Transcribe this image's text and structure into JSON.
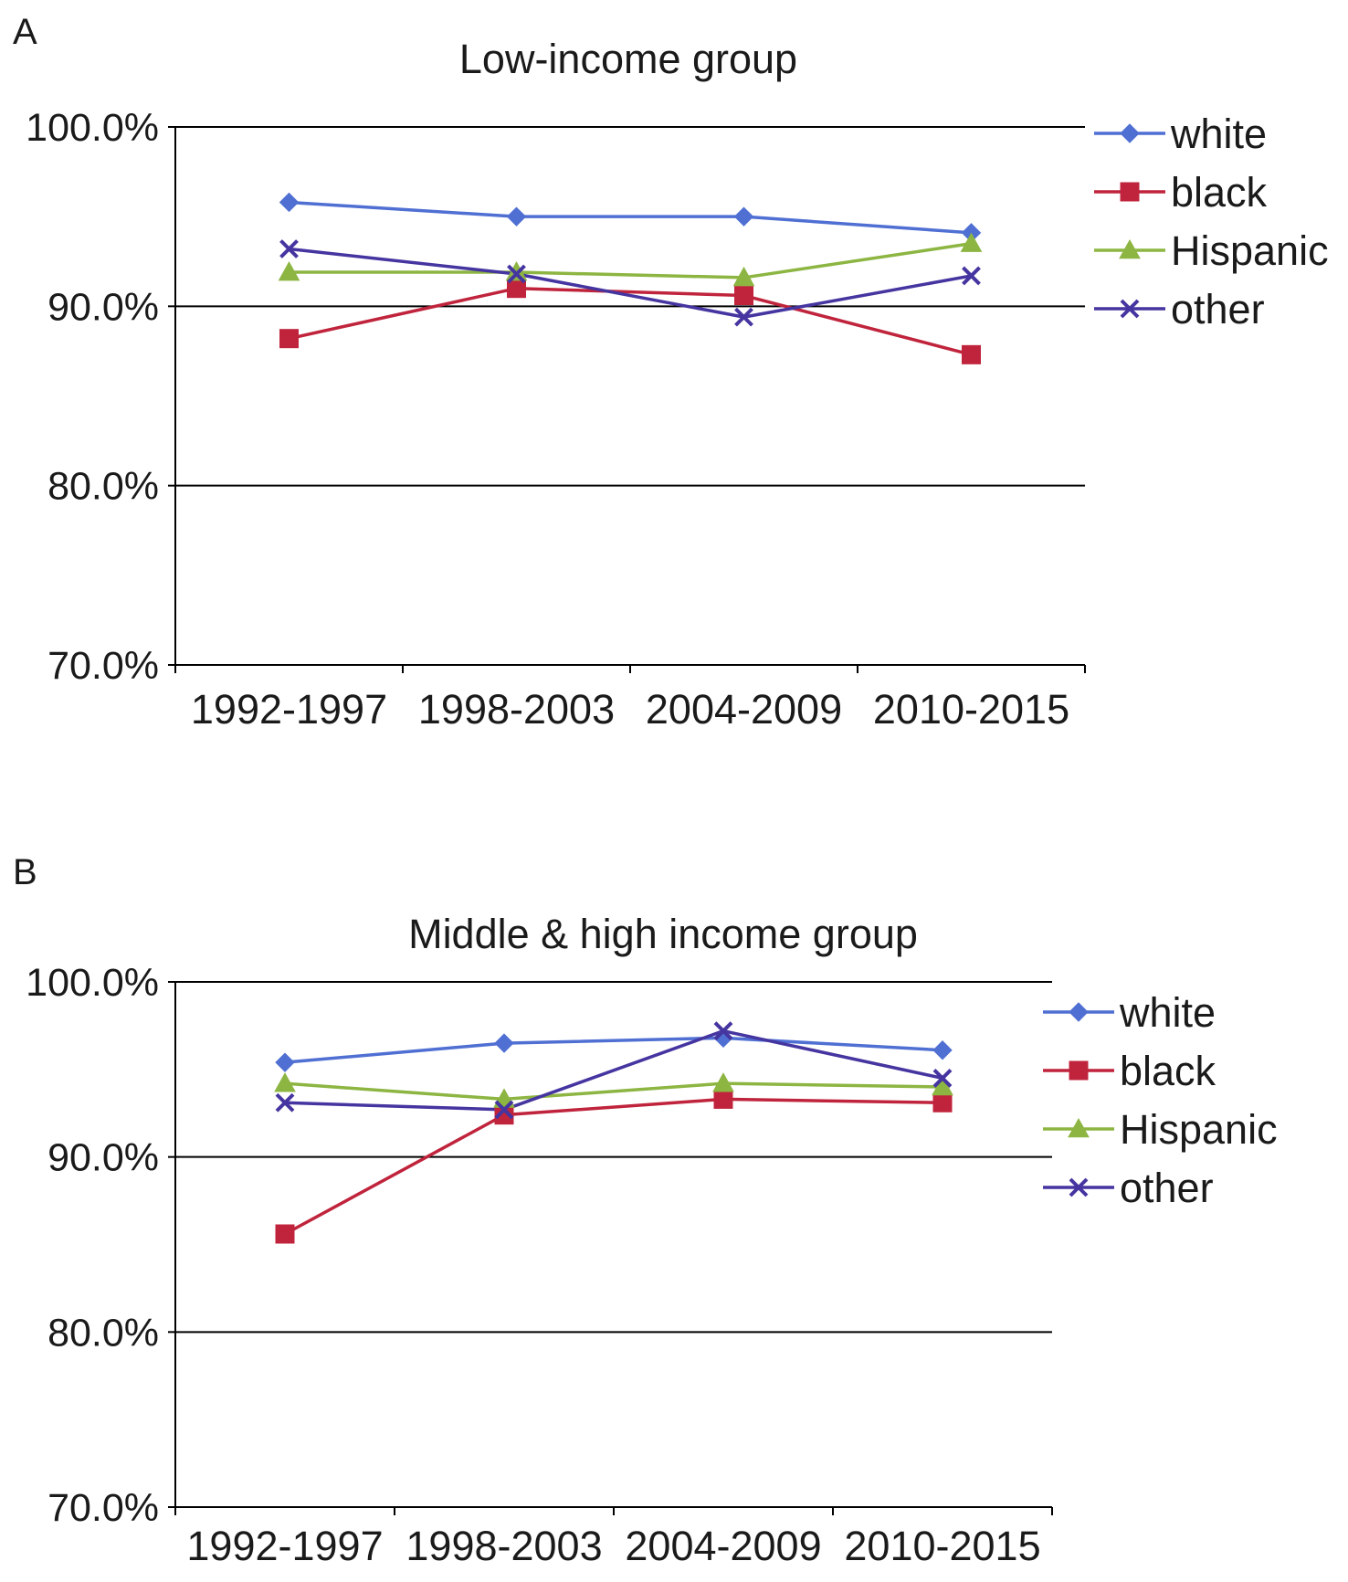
{
  "chart_data": [
    {
      "panel_label": "A",
      "type": "line",
      "title": "Low-income group",
      "xlabel": "",
      "ylabel": "",
      "categories": [
        "1992-1997",
        "1998-2003",
        "2004-2009",
        "2010-2015"
      ],
      "ylim": [
        0.7,
        1.0
      ],
      "yticks": [
        "100.0%",
        "90.0%",
        "80.0%",
        "70.0%"
      ],
      "ytick_values": [
        1.0,
        0.9,
        0.8,
        0.7
      ],
      "grid": true,
      "legend_position": "right",
      "series": [
        {
          "name": "white",
          "marker": "diamond",
          "color": "#4F6FD3",
          "values": [
            0.958,
            0.95,
            0.95,
            0.941
          ]
        },
        {
          "name": "black",
          "marker": "square",
          "color": "#C0243C",
          "values": [
            0.882,
            0.91,
            0.906,
            0.873
          ]
        },
        {
          "name": "Hispanic",
          "marker": "triangle",
          "color": "#8DB542",
          "values": [
            0.919,
            0.919,
            0.916,
            0.935
          ]
        },
        {
          "name": "other",
          "marker": "x",
          "color": "#4535A0",
          "values": [
            0.932,
            0.918,
            0.894,
            0.917
          ]
        }
      ]
    },
    {
      "panel_label": "B",
      "type": "line",
      "title": "Middle & high income group",
      "xlabel": "",
      "ylabel": "",
      "categories": [
        "1992-1997",
        "1998-2003",
        "2004-2009",
        "2010-2015"
      ],
      "ylim": [
        0.7,
        1.0
      ],
      "yticks": [
        "100.0%",
        "90.0%",
        "80.0%",
        "70.0%"
      ],
      "ytick_values": [
        1.0,
        0.9,
        0.8,
        0.7
      ],
      "grid": true,
      "legend_position": "right",
      "series": [
        {
          "name": "white",
          "marker": "diamond",
          "color": "#4F6FD3",
          "values": [
            0.954,
            0.965,
            0.968,
            0.961
          ]
        },
        {
          "name": "black",
          "marker": "square",
          "color": "#C0243C",
          "values": [
            0.856,
            0.924,
            0.933,
            0.931
          ]
        },
        {
          "name": "Hispanic",
          "marker": "triangle",
          "color": "#8DB542",
          "values": [
            0.942,
            0.933,
            0.942,
            0.94
          ]
        },
        {
          "name": "other",
          "marker": "x",
          "color": "#4535A0",
          "values": [
            0.931,
            0.927,
            0.972,
            0.945
          ]
        }
      ]
    }
  ]
}
